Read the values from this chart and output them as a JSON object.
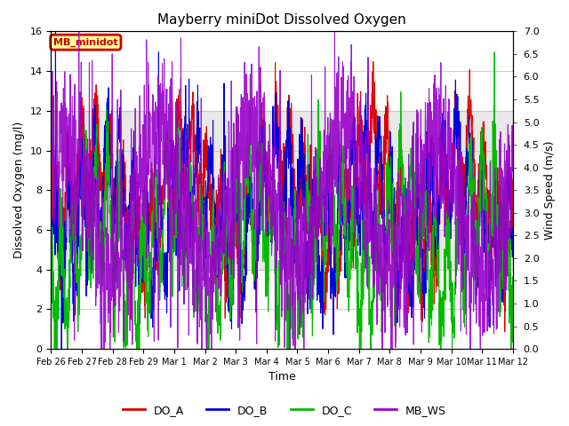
{
  "title": "Mayberry miniDot Dissolved Oxygen",
  "xlabel": "Time",
  "ylabel_left": "Dissolved Oxygen (mg/l)",
  "ylabel_right": "Wind Speed (m/s)",
  "ylim_left": [
    0,
    16
  ],
  "ylim_right": [
    0.0,
    7.0
  ],
  "yticks_left": [
    0,
    2,
    4,
    6,
    8,
    10,
    12,
    14,
    16
  ],
  "yticks_right": [
    0.0,
    0.5,
    1.0,
    1.5,
    2.0,
    2.5,
    3.0,
    3.5,
    4.0,
    4.5,
    5.0,
    5.5,
    6.0,
    6.5,
    7.0
  ],
  "legend_box_label": "MB_minidot",
  "legend_box_color": "#cc0000",
  "legend_box_bg": "#ffff99",
  "shading": {
    "ymin": 4,
    "ymax": 12,
    "color": "#d3d3d3",
    "alpha": 0.5
  },
  "series": [
    {
      "name": "DO_A",
      "color": "#dd0000",
      "lw": 0.8
    },
    {
      "name": "DO_B",
      "color": "#0000dd",
      "lw": 0.8
    },
    {
      "name": "DO_C",
      "color": "#00bb00",
      "lw": 0.8
    },
    {
      "name": "MB_WS",
      "color": "#9900cc",
      "lw": 0.8,
      "axis": "right"
    }
  ],
  "xtick_labels": [
    "Feb 26",
    "Feb 27",
    "Feb 28",
    "Feb 29",
    "Mar 1",
    "Mar 2",
    "Mar 3",
    "Mar 4",
    "Mar 5",
    "Mar 6",
    "Mar 7",
    "Mar 8",
    "Mar 9",
    "Mar 10",
    "Mar 11",
    "Mar 12"
  ],
  "bg_color": "#ffffff",
  "grid_color": "#bbbbbb",
  "figsize": [
    6.4,
    4.8
  ],
  "dpi": 100
}
